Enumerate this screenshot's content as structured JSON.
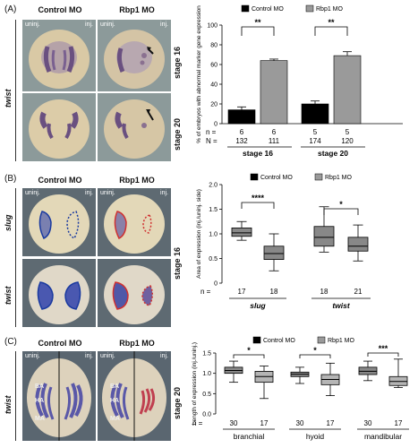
{
  "panelA": {
    "label": "(A)",
    "col_control": "Control MO",
    "col_rbp1": "Rbp1 MO",
    "uninj": "uninj.",
    "inj": "inj.",
    "gene": "twist",
    "stage_top": "stage 16",
    "stage_bottom": "stage 20",
    "chart_data": {
      "type": "bar",
      "ylabel": "% of embryos with abnormal marker gene expression",
      "ylim": [
        0,
        100
      ],
      "yticks": [
        "0",
        "20",
        "40",
        "60",
        "80",
        "100"
      ],
      "legend": [
        "Control MO",
        "Rbp1 MO"
      ],
      "groups": [
        "stage 16",
        "stage 20"
      ],
      "series": [
        {
          "name": "Control MO",
          "values": [
            14,
            20
          ],
          "err": [
            3,
            3
          ],
          "color": "#000000"
        },
        {
          "name": "Rbp1 MO",
          "values": [
            64,
            69
          ],
          "err": [
            1.5,
            4
          ],
          "color": "#9a9a9a"
        }
      ],
      "n_label": "n =",
      "N_label": "N =",
      "n": [
        "6",
        "6",
        "5",
        "5"
      ],
      "N": [
        "132",
        "111",
        "174",
        "120"
      ],
      "sig": [
        "**",
        "**"
      ]
    }
  },
  "panelB": {
    "label": "(B)",
    "col_control": "Control MO",
    "col_rbp1": "Rbp1 MO",
    "uninj": "uninj.",
    "inj": "inj.",
    "gene_top": "slug",
    "gene_bottom": "twist",
    "stage": "stage 16",
    "chart_data": {
      "type": "box",
      "ylabel": "Area of expression (inj./uninj. side)",
      "ylim": [
        0,
        2.0
      ],
      "yticks": [
        "0",
        "0.5",
        "1.0",
        "1.5",
        "2.0"
      ],
      "legend": [
        "Control MO",
        "Rbp1 MO"
      ],
      "groups": [
        "slug",
        "twist"
      ],
      "boxes": [
        {
          "series": "Control MO",
          "min": 0.87,
          "q1": 0.95,
          "median": 1.02,
          "q3": 1.12,
          "max": 1.25
        },
        {
          "series": "Rbp1 MO",
          "min": 0.25,
          "q1": 0.48,
          "median": 0.6,
          "q3": 0.75,
          "max": 1.0
        },
        {
          "series": "Control MO",
          "min": 0.63,
          "q1": 0.75,
          "median": 0.93,
          "q3": 1.15,
          "max": 1.55
        },
        {
          "series": "Rbp1 MO",
          "min": 0.45,
          "q1": 0.65,
          "median": 0.75,
          "q3": 0.93,
          "max": 1.18
        }
      ],
      "n_label": "n =",
      "n": [
        "17",
        "18",
        "18",
        "21"
      ],
      "sig": [
        "****",
        "*"
      ]
    }
  },
  "panelC": {
    "label": "(C)",
    "col_control": "Control MO",
    "col_rbp1": "Rbp1 MO",
    "uninj": "uninj.",
    "inj": "inj.",
    "gene": "twist",
    "stage": "stage 20",
    "arch_labels": [
      "BA",
      "HA",
      "MA"
    ],
    "chart_data": {
      "type": "box",
      "ylabel": "Length of expression (inj./uninj.)",
      "ylim": [
        0,
        1.5
      ],
      "yticks": [
        "0.0",
        "0.5",
        "1.0",
        "1.5"
      ],
      "legend": [
        "Control MO",
        "Rbp1 MO"
      ],
      "groups": [
        "branchial",
        "hyoid",
        "mandibular"
      ],
      "boxes": [
        {
          "series": "Control MO",
          "min": 0.78,
          "q1": 1.0,
          "median": 1.07,
          "q3": 1.15,
          "max": 1.3
        },
        {
          "series": "Rbp1 MO",
          "min": 0.38,
          "q1": 0.78,
          "median": 0.92,
          "q3": 1.05,
          "max": 1.18
        },
        {
          "series": "Control MO",
          "min": 0.75,
          "q1": 0.92,
          "median": 0.98,
          "q3": 1.03,
          "max": 1.15
        },
        {
          "series": "Rbp1 MO",
          "min": 0.45,
          "q1": 0.72,
          "median": 0.85,
          "q3": 0.97,
          "max": 1.25
        },
        {
          "series": "Control MO",
          "min": 0.82,
          "q1": 0.97,
          "median": 1.05,
          "q3": 1.15,
          "max": 1.3
        },
        {
          "series": "Rbp1 MO",
          "min": 0.65,
          "q1": 0.7,
          "median": 0.8,
          "q3": 0.92,
          "max": 1.35
        }
      ],
      "n_label": "n =",
      "n": [
        "30",
        "17",
        "30",
        "17",
        "30",
        "17"
      ],
      "sig": [
        "*",
        "*",
        "***"
      ]
    }
  },
  "colors": {
    "control": "#000000",
    "rbp1": "#9a9a9a",
    "rbp1_light": "#b5b5b5",
    "box": "#888888"
  }
}
